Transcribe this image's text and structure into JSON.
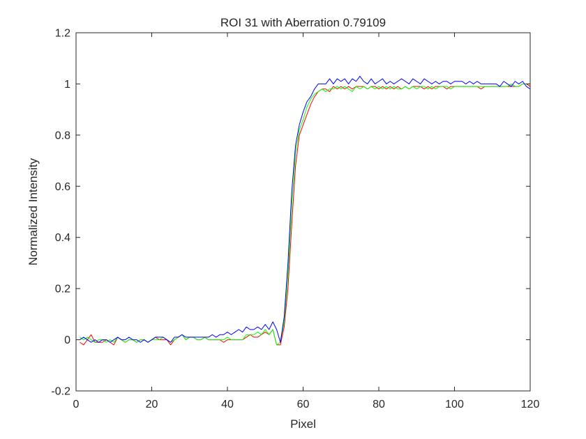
{
  "chart_data": {
    "type": "line",
    "title": "ROI 31 with Aberration 0.79109",
    "xlabel": "Pixel",
    "ylabel": "Normalized Intensity",
    "xlim": [
      0,
      120
    ],
    "ylim": [
      -0.2,
      1.2
    ],
    "x_ticks": [
      0,
      20,
      40,
      60,
      80,
      100,
      120
    ],
    "y_ticks": [
      -0.2,
      0,
      0.2,
      0.4,
      0.6,
      0.8,
      1,
      1.2
    ],
    "x_tick_labels": [
      "0",
      "20",
      "40",
      "60",
      "80",
      "100",
      "120"
    ],
    "y_tick_labels": [
      "-0.2",
      "0",
      "0.2",
      "0.4",
      "0.6",
      "0.8",
      "1",
      "1.2"
    ],
    "grid": false,
    "series": [
      {
        "color": "#ff0000",
        "x": [
          1,
          2,
          3,
          4,
          5,
          6,
          7,
          8,
          9,
          10,
          11,
          12,
          13,
          14,
          15,
          16,
          17,
          18,
          19,
          20,
          21,
          22,
          23,
          24,
          25,
          26,
          27,
          28,
          29,
          30,
          31,
          32,
          33,
          34,
          35,
          36,
          37,
          38,
          39,
          40,
          41,
          42,
          43,
          44,
          45,
          46,
          47,
          48,
          49,
          50,
          51,
          52,
          53,
          54,
          55,
          56,
          57,
          58,
          59,
          60,
          61,
          62,
          63,
          64,
          65,
          66,
          67,
          68,
          69,
          70,
          71,
          72,
          73,
          74,
          75,
          76,
          77,
          78,
          79,
          80,
          81,
          82,
          83,
          84,
          85,
          86,
          87,
          88,
          89,
          90,
          91,
          92,
          93,
          94,
          95,
          96,
          97,
          98,
          99,
          100,
          101,
          102,
          103,
          104,
          105,
          106,
          107,
          108,
          109,
          110,
          111,
          112,
          113,
          114,
          115,
          116,
          117,
          118,
          119,
          120
        ],
        "values": [
          -0.01,
          -0.02,
          0.0,
          0.02,
          -0.01,
          -0.01,
          -0.01,
          0.0,
          -0.01,
          -0.02,
          0.01,
          0.0,
          -0.01,
          0.0,
          0.0,
          -0.01,
          0.0,
          0.0,
          -0.01,
          0.0,
          0.01,
          0.0,
          0.0,
          0.0,
          -0.02,
          0.0,
          0.01,
          0.02,
          0.0,
          0.01,
          0.01,
          0.0,
          0.0,
          0.01,
          0.0,
          0.0,
          0.0,
          0.0,
          -0.01,
          0.0,
          0.0,
          0.0,
          0.0,
          0.0,
          0.01,
          0.02,
          0.01,
          0.01,
          0.02,
          0.03,
          0.02,
          0.04,
          -0.02,
          -0.02,
          0.05,
          0.2,
          0.45,
          0.68,
          0.8,
          0.84,
          0.88,
          0.92,
          0.95,
          0.97,
          0.98,
          0.98,
          0.97,
          0.99,
          0.98,
          0.99,
          0.98,
          0.99,
          0.98,
          0.99,
          0.99,
          0.99,
          0.98,
          0.99,
          0.99,
          0.98,
          0.99,
          0.98,
          0.99,
          0.98,
          0.99,
          0.98,
          0.99,
          0.98,
          0.99,
          0.99,
          0.99,
          0.98,
          0.99,
          0.98,
          0.99,
          0.99,
          0.99,
          0.98,
          0.99,
          0.99,
          0.99,
          0.99,
          0.99,
          0.99,
          0.99,
          0.99,
          0.98,
          0.99,
          0.99,
          0.99,
          0.99,
          0.99,
          0.99,
          0.99,
          0.99,
          0.99,
          0.99,
          1.0,
          1.0,
          0.99
        ]
      },
      {
        "color": "#00ff00",
        "x": [
          1,
          2,
          3,
          4,
          5,
          6,
          7,
          8,
          9,
          10,
          11,
          12,
          13,
          14,
          15,
          16,
          17,
          18,
          19,
          20,
          21,
          22,
          23,
          24,
          25,
          26,
          27,
          28,
          29,
          30,
          31,
          32,
          33,
          34,
          35,
          36,
          37,
          38,
          39,
          40,
          41,
          42,
          43,
          44,
          45,
          46,
          47,
          48,
          49,
          50,
          51,
          52,
          53,
          54,
          55,
          56,
          57,
          58,
          59,
          60,
          61,
          62,
          63,
          64,
          65,
          66,
          67,
          68,
          69,
          70,
          71,
          72,
          73,
          74,
          75,
          76,
          77,
          78,
          79,
          80,
          81,
          82,
          83,
          84,
          85,
          86,
          87,
          88,
          89,
          90,
          91,
          92,
          93,
          94,
          95,
          96,
          97,
          98,
          99,
          100,
          101,
          102,
          103,
          104,
          105,
          106,
          107,
          108,
          109,
          110,
          111,
          112,
          113,
          114,
          115,
          116,
          117,
          118,
          119,
          120
        ],
        "values": [
          0.01,
          0.0,
          0.01,
          0.0,
          -0.01,
          0.0,
          0.0,
          -0.01,
          0.0,
          -0.01,
          0.01,
          0.0,
          -0.01,
          0.0,
          0.0,
          -0.01,
          0.0,
          0.0,
          -0.01,
          0.0,
          0.0,
          0.0,
          0.01,
          0.0,
          -0.01,
          0.0,
          0.01,
          0.02,
          0.0,
          0.01,
          0.01,
          0.0,
          0.0,
          0.01,
          0.0,
          0.0,
          0.0,
          0.0,
          0.0,
          0.01,
          0.0,
          0.0,
          0.0,
          0.0,
          0.02,
          0.02,
          0.02,
          0.03,
          0.02,
          0.04,
          0.02,
          0.04,
          -0.02,
          -0.01,
          0.07,
          0.25,
          0.52,
          0.73,
          0.82,
          0.86,
          0.91,
          0.94,
          0.96,
          0.97,
          0.98,
          0.97,
          0.98,
          0.98,
          0.99,
          0.98,
          0.99,
          0.98,
          0.97,
          0.99,
          0.98,
          0.99,
          0.98,
          0.99,
          0.98,
          0.99,
          0.98,
          0.99,
          0.98,
          0.99,
          0.98,
          0.98,
          0.99,
          0.98,
          0.99,
          0.98,
          0.99,
          0.99,
          0.98,
          0.99,
          0.98,
          0.99,
          0.99,
          0.99,
          0.98,
          0.99,
          0.99,
          0.99,
          0.99,
          0.99,
          0.99,
          0.99,
          0.99,
          0.99,
          0.99,
          0.99,
          0.99,
          0.99,
          0.99,
          0.99,
          1.0,
          0.99,
          0.99,
          1.0,
          1.0,
          1.0
        ]
      },
      {
        "color": "#0000ff",
        "x": [
          1,
          2,
          3,
          4,
          5,
          6,
          7,
          8,
          9,
          10,
          11,
          12,
          13,
          14,
          15,
          16,
          17,
          18,
          19,
          20,
          21,
          22,
          23,
          24,
          25,
          26,
          27,
          28,
          29,
          30,
          31,
          32,
          33,
          34,
          35,
          36,
          37,
          38,
          39,
          40,
          41,
          42,
          43,
          44,
          45,
          46,
          47,
          48,
          49,
          50,
          51,
          52,
          53,
          54,
          55,
          56,
          57,
          58,
          59,
          60,
          61,
          62,
          63,
          64,
          65,
          66,
          67,
          68,
          69,
          70,
          71,
          72,
          73,
          74,
          75,
          76,
          77,
          78,
          79,
          80,
          81,
          82,
          83,
          84,
          85,
          86,
          87,
          88,
          89,
          90,
          91,
          92,
          93,
          94,
          95,
          96,
          97,
          98,
          99,
          100,
          101,
          102,
          103,
          104,
          105,
          106,
          107,
          108,
          109,
          110,
          111,
          112,
          113,
          114,
          115,
          116,
          117,
          118,
          119,
          120
        ],
        "values": [
          0.0,
          0.01,
          0.0,
          -0.01,
          0.0,
          -0.01,
          0.0,
          0.0,
          -0.01,
          0.0,
          0.01,
          0.0,
          0.0,
          0.01,
          0.0,
          0.0,
          -0.01,
          0.0,
          -0.01,
          0.0,
          0.01,
          0.01,
          0.01,
          0.0,
          -0.01,
          0.01,
          0.01,
          0.02,
          0.01,
          0.01,
          0.01,
          0.01,
          0.01,
          0.01,
          0.01,
          0.02,
          0.01,
          0.02,
          0.02,
          0.03,
          0.02,
          0.03,
          0.04,
          0.03,
          0.05,
          0.04,
          0.04,
          0.05,
          0.04,
          0.06,
          0.04,
          0.07,
          0.04,
          -0.01,
          0.09,
          0.3,
          0.58,
          0.76,
          0.84,
          0.89,
          0.93,
          0.95,
          0.98,
          1.0,
          1.0,
          1.0,
          1.02,
          1.0,
          1.02,
          1.01,
          1.02,
          1.0,
          1.02,
          1.01,
          1.03,
          1.01,
          1.0,
          1.02,
          1.0,
          1.01,
          1.02,
          1.0,
          1.01,
          1.0,
          1.01,
          1.02,
          1.01,
          1.0,
          1.02,
          1.01,
          1.0,
          1.02,
          1.01,
          1.0,
          1.01,
          1.0,
          1.01,
          1.01,
          1.0,
          1.01,
          1.01,
          1.01,
          1.0,
          1.01,
          1.0,
          1.01,
          1.0,
          1.0,
          1.0,
          1.0,
          1.0,
          0.99,
          1.01,
          1.0,
          0.99,
          1.01,
          1.0,
          1.01,
          0.99,
          0.98
        ]
      }
    ]
  }
}
